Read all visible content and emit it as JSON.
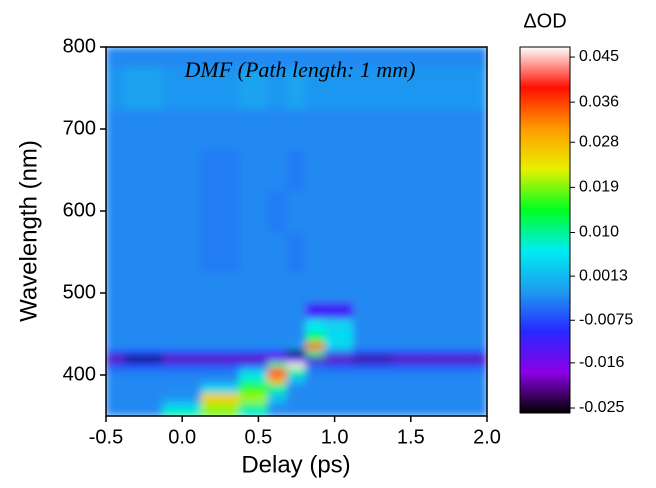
{
  "chart_data": {
    "type": "heatmap",
    "annotation": "DMF (Path length: 1 mm)",
    "x_label": "Delay (ps)",
    "y_label": "Wavelength (nm)",
    "colorbar_title": "ΔOD",
    "x": [
      -0.5,
      -0.25,
      0,
      0.25,
      0.5,
      0.625,
      0.75,
      0.875,
      1.0,
      1.25,
      1.5,
      1.75,
      2.0
    ],
    "y": [
      350,
      360,
      372,
      385,
      395,
      405,
      413,
      420,
      427,
      435,
      445,
      460,
      478,
      500,
      550,
      600,
      650,
      700,
      750,
      800
    ],
    "z": [
      [
        -0.003,
        -0.003,
        0.012,
        0.018,
        0.005,
        -0.003,
        -0.003,
        -0.003,
        -0.003,
        -0.003,
        -0.003,
        -0.003,
        -0.003
      ],
      [
        -0.003,
        -0.003,
        0.005,
        0.02,
        0.01,
        -0.003,
        -0.003,
        -0.003,
        -0.003,
        -0.003,
        -0.003,
        -0.003,
        -0.003
      ],
      [
        -0.003,
        -0.003,
        -0.002,
        0.026,
        0.02,
        0.002,
        -0.003,
        -0.003,
        -0.003,
        -0.003,
        -0.003,
        -0.003,
        -0.003
      ],
      [
        -0.003,
        -0.003,
        -0.003,
        0.004,
        0.016,
        0.01,
        -0.003,
        -0.003,
        -0.003,
        -0.003,
        -0.003,
        -0.003,
        -0.003
      ],
      [
        -0.003,
        -0.003,
        -0.003,
        -0.003,
        0.008,
        0.03,
        0.002,
        -0.003,
        -0.003,
        -0.003,
        -0.003,
        -0.003,
        -0.003
      ],
      [
        -0.004,
        -0.004,
        -0.004,
        -0.004,
        0.004,
        0.04,
        0.01,
        -0.004,
        -0.004,
        -0.004,
        -0.004,
        -0.004,
        -0.004
      ],
      [
        -0.008,
        -0.008,
        -0.008,
        -0.008,
        -0.008,
        0.01,
        0.046,
        -0.006,
        -0.008,
        -0.008,
        -0.008,
        -0.008,
        -0.008
      ],
      [
        -0.02,
        -0.025,
        -0.02,
        -0.02,
        -0.02,
        -0.018,
        -0.01,
        -0.02,
        -0.02,
        -0.022,
        -0.02,
        -0.02,
        -0.02
      ],
      [
        -0.008,
        -0.008,
        -0.008,
        -0.008,
        -0.008,
        -0.01,
        -0.025,
        0.01,
        -0.006,
        -0.008,
        -0.008,
        -0.008,
        -0.008
      ],
      [
        -0.003,
        -0.003,
        -0.003,
        -0.003,
        -0.003,
        -0.003,
        -0.002,
        0.035,
        0.004,
        -0.003,
        -0.003,
        -0.003,
        -0.003
      ],
      [
        -0.003,
        -0.003,
        -0.003,
        -0.003,
        -0.003,
        -0.003,
        -0.003,
        0.012,
        0.005,
        -0.003,
        -0.003,
        -0.003,
        -0.003
      ],
      [
        -0.003,
        -0.003,
        -0.003,
        -0.003,
        -0.003,
        -0.003,
        -0.003,
        0.006,
        0.004,
        -0.003,
        -0.003,
        -0.003,
        -0.003
      ],
      [
        -0.003,
        -0.003,
        -0.003,
        -0.003,
        -0.003,
        -0.003,
        -0.003,
        -0.012,
        -0.012,
        -0.003,
        -0.003,
        -0.003,
        -0.003
      ],
      [
        -0.003,
        -0.003,
        -0.003,
        -0.003,
        -0.003,
        -0.003,
        -0.003,
        -0.003,
        -0.003,
        -0.003,
        -0.003,
        -0.003,
        -0.003
      ],
      [
        -0.003,
        -0.003,
        -0.003,
        -0.004,
        -0.003,
        -0.003,
        -0.004,
        -0.003,
        -0.003,
        -0.003,
        -0.003,
        -0.003,
        -0.003
      ],
      [
        -0.003,
        -0.003,
        -0.003,
        -0.004,
        -0.003,
        -0.004,
        -0.003,
        -0.003,
        -0.003,
        -0.003,
        -0.003,
        -0.003,
        -0.003
      ],
      [
        -0.003,
        -0.003,
        -0.003,
        -0.004,
        -0.003,
        -0.003,
        -0.004,
        -0.003,
        -0.003,
        -0.003,
        -0.003,
        -0.003,
        -0.003
      ],
      [
        -0.003,
        -0.003,
        -0.003,
        -0.003,
        -0.003,
        -0.003,
        -0.003,
        -0.003,
        -0.003,
        -0.003,
        -0.003,
        -0.003,
        -0.003
      ],
      [
        -0.002,
        -0.001,
        -0.002,
        -0.002,
        -0.001,
        -0.002,
        -0.001,
        -0.002,
        -0.002,
        -0.002,
        -0.002,
        -0.002,
        -0.002
      ],
      [
        -0.003,
        -0.003,
        -0.003,
        -0.003,
        -0.003,
        -0.003,
        -0.003,
        -0.003,
        -0.003,
        -0.003,
        -0.003,
        -0.003,
        -0.003
      ]
    ],
    "xlim": [
      -0.5,
      2.0
    ],
    "xticks": [
      -0.5,
      {
        "value": 0,
        "label": "0.0"
      },
      0.5,
      {
        "value": 1,
        "label": "1.0"
      },
      1.5,
      {
        "value": 2,
        "label": "2.0"
      }
    ],
    "ylim": [
      350,
      800
    ],
    "yticks": [
      400,
      500,
      600,
      700,
      800
    ],
    "zlim": [
      -0.026,
      0.047
    ],
    "zticks": [
      -0.025,
      -0.016,
      -0.0075,
      0.0013,
      {
        "value": 0.01,
        "label": "0.010"
      },
      0.019,
      0.028,
      0.036,
      0.045
    ],
    "colors": [
      "#000000",
      "#8c00e6",
      "#2828ff",
      "#1e9cf0",
      "#00ecf0",
      "#00ff20",
      "#e8f000",
      "#ff9a00",
      "#ff1000",
      "#ffffff"
    ]
  }
}
